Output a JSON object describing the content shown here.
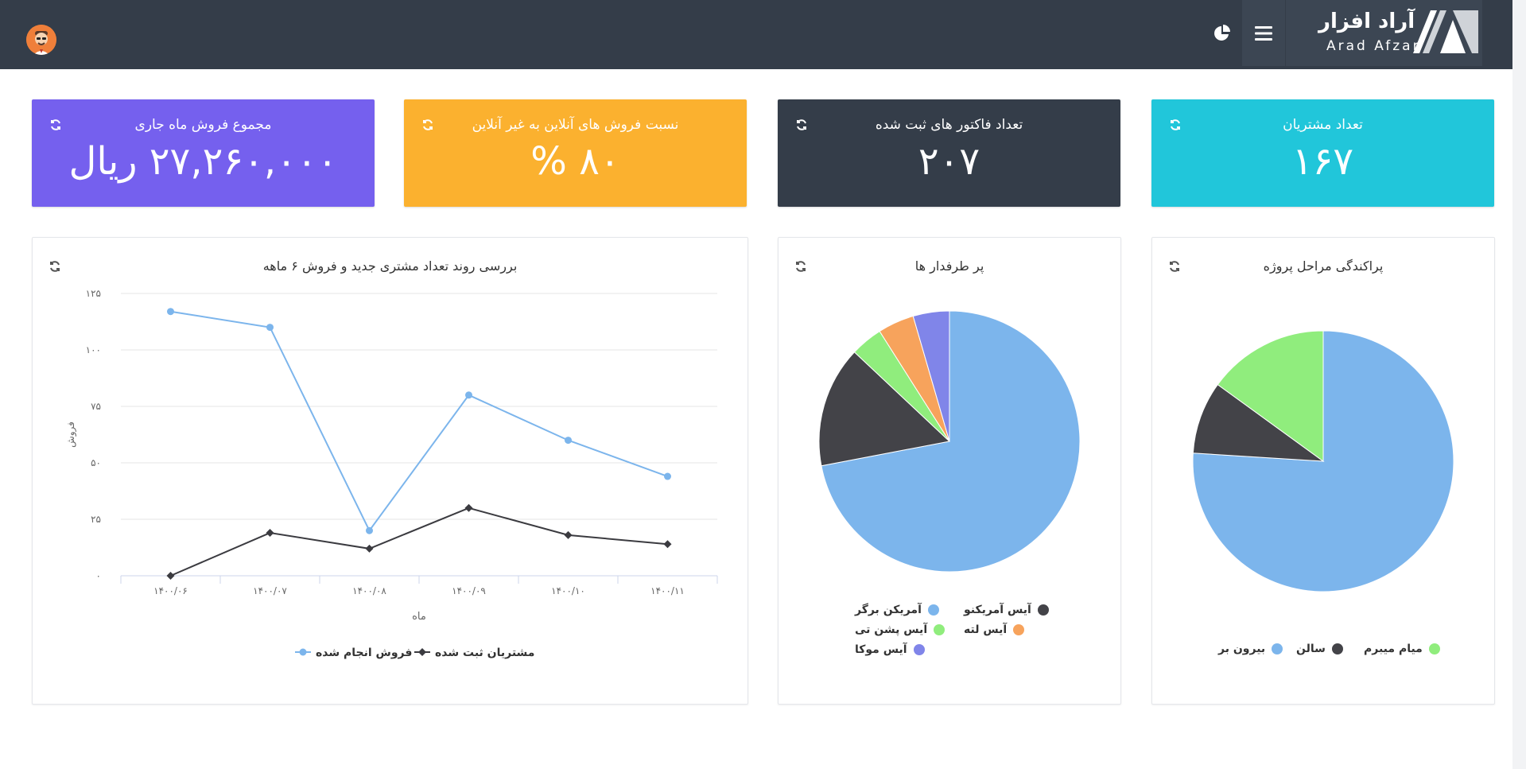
{
  "brand": {
    "name_fa": "آراد افزار",
    "name_en": "Arad Afzar"
  },
  "stats": [
    {
      "title": "تعداد مشتریان",
      "value": "۱۶۷",
      "color": "#21c6da"
    },
    {
      "title": "تعداد فاکتور های ثبت شده",
      "value": "۲۰۷",
      "color": "#343d49"
    },
    {
      "title": "نسبت فروش های آنلاین به غیر آنلاین",
      "value": "۸۰ %",
      "color": "#fbb12f"
    },
    {
      "title": "مجموع فروش ماه جاری",
      "value": "۲۷,۲۶۰,۰۰۰ ریال",
      "color": "#7560ee"
    }
  ],
  "line_panel": {
    "title": "بررسی روند تعداد مشتری جدید و فروش ۶ ماهه"
  },
  "pie1_panel": {
    "title": "پراکندگی مراحل پروژه"
  },
  "pie2_panel": {
    "title": "پر طرفدار ها"
  },
  "icons": {
    "refresh": "refresh-icon",
    "menu": "hamburger-menu-icon",
    "pie": "pie-chart-icon",
    "avatar": "user-avatar-icon"
  },
  "chart_data": [
    {
      "type": "line",
      "title": "بررسی روند تعداد مشتری جدید و فروش ۶ ماهه",
      "xlabel": "ماه",
      "ylabel": "فروش",
      "categories": [
        "۱۴۰۰/۰۶",
        "۱۴۰۰/۰۷",
        "۱۴۰۰/۰۸",
        "۱۴۰۰/۰۹",
        "۱۴۰۰/۱۰",
        "۱۴۰۰/۱۱"
      ],
      "ylim": [
        0,
        125
      ],
      "yticks": [
        0,
        25,
        50,
        75,
        100,
        125
      ],
      "ytick_labels": [
        "۰",
        "۲۵",
        "۵۰",
        "۷۵",
        "۱۰۰",
        "۱۲۵"
      ],
      "grid": true,
      "legend": "bottom",
      "series": [
        {
          "name": "فروش انجام شده",
          "color": "#7cb5ec",
          "marker": "circle",
          "values": [
            117,
            110,
            20,
            80,
            60,
            44
          ]
        },
        {
          "name": "مشتریان ثبت شده",
          "color": "#3b3b40",
          "marker": "diamond",
          "values": [
            0,
            19,
            12,
            30,
            18,
            14
          ]
        }
      ]
    },
    {
      "type": "pie",
      "title": "پراکندگی مراحل پروژه",
      "legend": "bottom",
      "slices": [
        {
          "name": "بیرون بر",
          "value": 76,
          "color": "#7cb5ec"
        },
        {
          "name": "سالن",
          "value": 9,
          "color": "#434348"
        },
        {
          "name": "میام میبرم",
          "value": 15,
          "color": "#90ed7d"
        }
      ]
    },
    {
      "type": "pie",
      "title": "پر طرفدار ها",
      "legend": "bottom",
      "slices": [
        {
          "name": "آمریکن برگر",
          "value": 72,
          "color": "#7cb5ec"
        },
        {
          "name": "آیس آمریکنو",
          "value": 15,
          "color": "#434348"
        },
        {
          "name": "آیس پشن تی",
          "value": 4,
          "color": "#90ed7d"
        },
        {
          "name": "آیس لته",
          "value": 4.5,
          "color": "#f7a35c"
        },
        {
          "name": "آیس موکا",
          "value": 4.5,
          "color": "#8085e9"
        }
      ]
    }
  ]
}
